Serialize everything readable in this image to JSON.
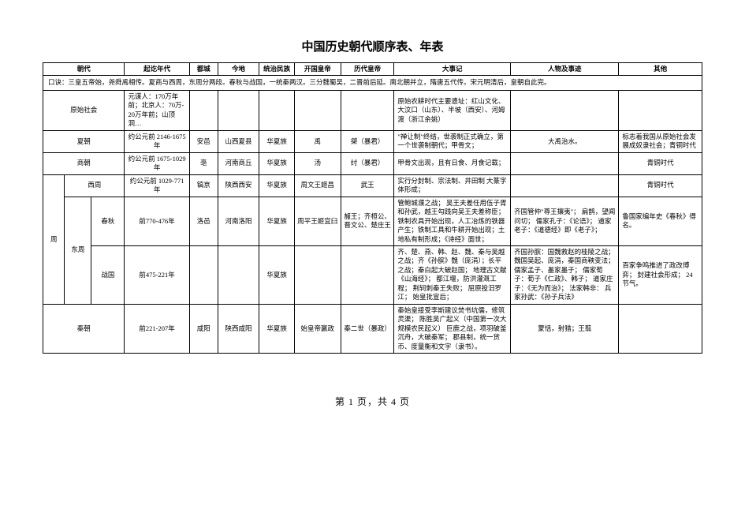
{
  "title": "中国历史朝代顺序表、年表",
  "headers": {
    "dynasty": "朝代",
    "years": "起讫年代",
    "capital": "都城",
    "today": "今地",
    "ethnicity": "统治民族",
    "founder": "开国皇帝",
    "last_emperor": "历代皇帝",
    "events": "大事记",
    "people": "人物及事迹",
    "other": "其他"
  },
  "mnemonic": "口诀：三皇五帝始，尧舜禹相传。夏商与西周，东周分两段。春秋与战国，一统秦两汉。三分魏蜀吴，二晋前后延。南北朝并立，隋唐五代传。宋元明清后，皇朝自此完。",
  "rows": {
    "primitive": {
      "name": "原始社会",
      "years": "元谋人：170万年前；北京人：70万-20万年前；山顶洞…",
      "events": "原始农耕时代主要遗址：红山文化、大汶口（山东）、半坡（西安）、河姆渡（浙江余姚）"
    },
    "xia": {
      "name": "夏朝",
      "years": "约公元前\n2146-1675年",
      "capital": "安邑",
      "today": "山西夏县",
      "ethnicity": "华夏族",
      "founder": "禹",
      "last_emperor": "桀（暴君）",
      "events": "\"禅让制\"终结，世袭制正式确立，第一个世袭制朝代；甲骨文；",
      "people": "大禹治水。",
      "other": "标志着我国从原始社会发展成奴隶社会；青铜时代"
    },
    "shang": {
      "name": "商朝",
      "years": "约公元前\n1675-1029年",
      "capital": "亳",
      "today": "河南商丘",
      "ethnicity": "华夏族",
      "founder": "汤",
      "last_emperor": "纣（暴君）",
      "events": "甲骨文出现，且有日食、月食记载；",
      "other": "青铜时代"
    },
    "xizhou": {
      "name": "西周",
      "years": "约公元前\n1029-771年",
      "capital": "镐京",
      "today": "陕西西安",
      "ethnicity": "华夏族",
      "founder": "周文王姬昌",
      "last_emperor": "武王",
      "events": "实行分封制、宗法制、井田制\n大篆字体形成；",
      "other": "青铜时代"
    },
    "zhou": {
      "name": "周"
    },
    "dongzhou": {
      "name": "东周"
    },
    "chunqiu": {
      "name": "春秋",
      "years": "前770-476年",
      "capital": "洛邑",
      "today": "河南洛阳",
      "ethnicity": "华夏族",
      "founder": "周平王姬宜臼",
      "last_emperor": "赧王；齐桓公、晋文公、楚庄王",
      "events": "管鲍城濮之战；\n吴王夫差任用伍子胥和孙武，越王勾践向吴王夫差称臣；铁制农具开始出现，人工冶炼的铁器产生；铁制工具和牛耕开始出现；土地私有制形成；《诗经》面世；",
      "people": "齐国管仲\"尊王攘夷\"；\n扁鹊，望闻问切；\n儒家孔子：《论语》；\n道家老子：《道德经》即《老子》；",
      "other": "鲁国家编年史《春秋》得名。"
    },
    "zhanguo": {
      "name": "战国",
      "years": "前475-221年",
      "ethnicity": "华夏族",
      "events": "齐、楚、燕、韩、赵、魏、秦与吴越之战；齐《孙膑》魏（庞涓）；长平之战；秦白起大破赵国；\n地理古文献《山海经》；\n都江堰，防洪灌溉工程；\n荆轲刺秦王失败；\n屈原投汨罗江；\n始皇批宣后；",
      "people": "齐国孙膑：国魏救赵的桂陵之战；\n魏国吴起、庞涓，秦国商鞅变法；\n儒家孟子、墨家墨子；\n儒家荀子：荀子《仁政》、韩子；\n道家庄子：《无为而治》；\n法家韩非：\n兵家孙武：《孙子兵法》",
      "other": "百家争鸣推进了政改博弈；\n封建社会形成；\n24节气。"
    },
    "qin": {
      "name": "秦朝",
      "years": "前221-207年",
      "capital": "咸阳",
      "today": "陕西咸阳",
      "ethnicity": "华夏族",
      "founder": "始皇帝嬴政",
      "last_emperor": "秦二世（暴政）",
      "events": "秦始皇接受李斯建议焚书坑儒，修筑灵渠；\n陈胜吴广起义（中国第一次大规模农民起义）\n巨鹿之战，项羽破釜沉舟，大破秦军；\n郡县制，统一货币、度量衡和文字（隶书）。",
      "people": "蒙恬，射猎；王翦"
    }
  },
  "footer": "第 1 页，共 4 页"
}
